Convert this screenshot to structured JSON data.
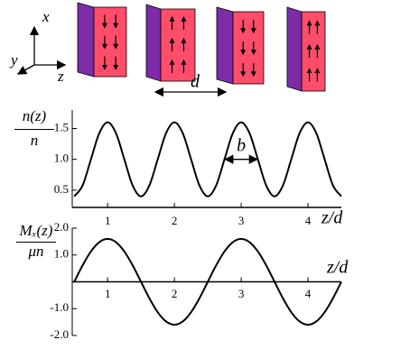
{
  "diagram": {
    "axis_x": "x",
    "axis_y": "y",
    "axis_z": "z",
    "spacing": "d"
  },
  "chart_data": [
    {
      "type": "line",
      "y_label_numerator": "n(z)",
      "y_label_denominator": "n",
      "x_label": "z/d",
      "annotation": "b",
      "x": [
        0.5,
        0.625,
        0.75,
        0.875,
        1,
        1.125,
        1.25,
        1.375,
        1.5,
        1.625,
        1.75,
        1.875,
        2,
        2.125,
        2.25,
        2.375,
        2.5,
        2.625,
        2.75,
        2.875,
        3,
        3.125,
        3.25,
        3.375,
        3.5,
        3.625,
        3.75,
        3.875,
        4,
        4.125,
        4.25,
        4.375,
        4.5
      ],
      "series": [
        {
          "color": "#000000",
          "values": [
            0.4,
            0.576,
            1.0,
            1.424,
            1.6,
            1.424,
            1.0,
            0.576,
            0.4,
            0.576,
            1.0,
            1.424,
            1.6,
            1.424,
            1.0,
            0.576,
            0.4,
            0.576,
            1.0,
            1.424,
            1.6,
            1.424,
            1.0,
            0.576,
            0.4,
            0.576,
            1.0,
            1.424,
            1.6,
            1.424,
            1.0,
            0.576,
            0.4
          ]
        }
      ],
      "xlim": [
        0.47,
        4.5
      ],
      "ylim": [
        0.22,
        1.8
      ],
      "xticks": [
        1,
        2,
        3,
        4
      ],
      "yticks": [
        0.5,
        {
          "value": 1.0,
          "label": "1.0"
        },
        1.5
      ]
    },
    {
      "type": "line",
      "y_label_numerator": "Mₓ(z)",
      "y_label_denominator": "μn",
      "x_label": "z/d",
      "x": [
        0.5,
        0.625,
        0.75,
        0.875,
        1,
        1.125,
        1.25,
        1.375,
        1.5,
        1.625,
        1.75,
        1.875,
        2,
        2.125,
        2.25,
        2.375,
        2.5,
        2.625,
        2.75,
        2.875,
        3,
        3.125,
        3.25,
        3.375,
        3.5,
        3.625,
        3.75,
        3.875,
        4,
        4.125,
        4.25,
        4.375,
        4.5
      ],
      "series": [
        {
          "color": "#000000",
          "values": [
            0,
            0.612,
            1.131,
            1.478,
            1.6,
            1.478,
            1.131,
            0.612,
            0,
            -0.612,
            -1.131,
            -1.478,
            -1.6,
            -1.478,
            -1.131,
            -0.612,
            0,
            0.612,
            1.131,
            1.478,
            1.6,
            1.478,
            1.131,
            0.612,
            0,
            -0.612,
            -1.131,
            -1.478,
            -1.6,
            -1.478,
            -1.131,
            -0.612,
            0
          ]
        }
      ],
      "xlim": [
        0.47,
        4.5
      ],
      "ylim": [
        -2.0,
        2.0
      ],
      "xticks": [
        1,
        2,
        3,
        4
      ],
      "yticks": [
        {
          "value": -2.0,
          "label": "-2.0"
        },
        {
          "value": -1.0,
          "label": "-1.0"
        },
        {
          "value": 1.0,
          "label": "1.0"
        },
        {
          "value": 2.0,
          "label": "2.0"
        }
      ]
    }
  ]
}
